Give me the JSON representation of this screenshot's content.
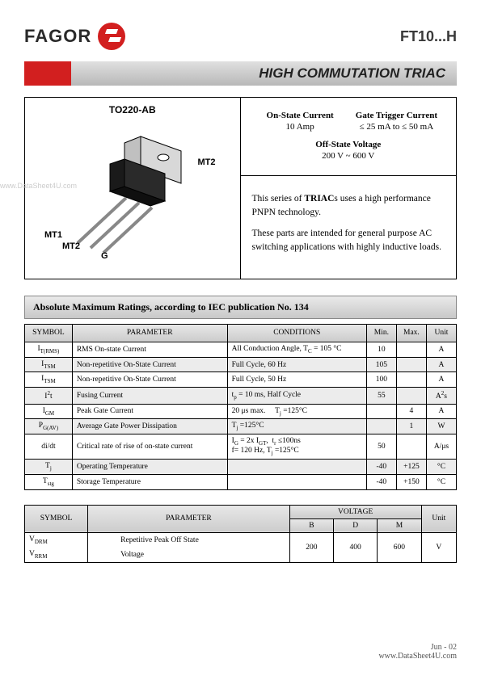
{
  "header": {
    "brand": "FAGOR",
    "part": "FT10...H"
  },
  "title": "HIGH COMMUTATION TRIAC",
  "package": {
    "label": "TO220-AB",
    "pins": {
      "mt2_top": "MT2",
      "mt1": "MT1",
      "mt2_bot": "MT2",
      "g": "G"
    }
  },
  "specs_box": {
    "on_state_label": "On-State Current",
    "on_state_val": "10 Amp",
    "gate_label": "Gate Trigger Current",
    "gate_val": "≤ 25 mA to ≤ 50 mA",
    "off_label": "Off-State Voltage",
    "off_val": "200 V ~ 600 V",
    "desc1_a": "This series of ",
    "desc1_b": "TRIAC",
    "desc1_c": "s uses a high performance PNPN technology.",
    "desc2": "These parts are intended for general purpose AC switching applications with highly inductive loads."
  },
  "ratings_title": "Absolute Maximum Ratings, according to IEC publication No. 134",
  "ratings": {
    "headers": {
      "symbol": "SYMBOL",
      "param": "PARAMETER",
      "cond": "CONDITIONS",
      "min": "Min.",
      "max": "Max.",
      "unit": "Unit"
    },
    "rows": [
      {
        "sym": "I<span class='sub'>T(RMS)</span>",
        "param": "RMS On-state Current",
        "cond": "All Conduction Angle, T<span class='sub'>C</span> = 105 °C",
        "min": "10",
        "max": "",
        "unit": "A",
        "shade": false
      },
      {
        "sym": "I<span class='sub'>TSM</span>",
        "param": "Non-repetitive On-State Current",
        "cond": "Full Cycle, 60 Hz",
        "min": "105",
        "max": "",
        "unit": "A",
        "shade": true
      },
      {
        "sym": "I<span class='sub'>TSM</span>",
        "param": "Non-repetitive On-State Current",
        "cond": "Full Cycle, 50 Hz",
        "min": "100",
        "max": "",
        "unit": "A",
        "shade": false
      },
      {
        "sym": "I<span class='sup'>2</span>t",
        "param": "Fusing Current",
        "cond": "t<span class='sub'>p</span> = 10 ms, Half Cycle",
        "min": "55",
        "max": "",
        "unit": "A<span class='sup'>2</span>s",
        "shade": true
      },
      {
        "sym": "I<span class='sub'>GM</span>",
        "param": "Peak Gate Current",
        "cond": "20 μs max. &nbsp;&nbsp;&nbsp; T<span class='sub'>j</span> =125°C",
        "min": "",
        "max": "4",
        "unit": "A",
        "shade": false
      },
      {
        "sym": "P<span class='sub'>G(AV)</span>",
        "param": "Average Gate Power Dissipation",
        "cond": "T<span class='sub'>j</span> =125°C",
        "min": "",
        "max": "1",
        "unit": "W",
        "shade": true
      },
      {
        "sym": "di/dt",
        "param": "Critical rate of rise of on-state current",
        "cond": "I<span class='sub'>G</span> = 2x I<span class='sub'>GT</span>, &nbsp;t<span class='sub'>r</span> ≤100ns<br>f= 120 Hz, T<span class='sub'>j</span> =125°C",
        "min": "50",
        "max": "",
        "unit": "A/μs",
        "shade": false
      },
      {
        "sym": "T<span class='sub'>j</span>",
        "param": "Operating Temperature",
        "cond": "",
        "min": "-40",
        "max": "+125",
        "unit": "°C",
        "shade": true
      },
      {
        "sym": "T<span class='sub'>stg</span>",
        "param": "Storage Temperature",
        "cond": "",
        "min": "-40",
        "max": "+150",
        "unit": "°C",
        "shade": false
      }
    ]
  },
  "voltage_table": {
    "headers": {
      "symbol": "SYMBOL",
      "param": "PARAMETER",
      "voltage": "VOLTAGE",
      "unit": "Unit",
      "b": "B",
      "d": "D",
      "m": "M"
    },
    "sym1": "V<span class='sub'>DRM</span>",
    "sym2": "V<span class='sub'>RRM</span>",
    "param1": "Repetitive Peak Off State",
    "param2": "Voltage",
    "b": "200",
    "d": "400",
    "m": "600",
    "unit": "V"
  },
  "footer": {
    "date": "Jun - 02",
    "url": "www.DataSheet4U.com"
  },
  "watermark": "www.DataSheet4U.com"
}
